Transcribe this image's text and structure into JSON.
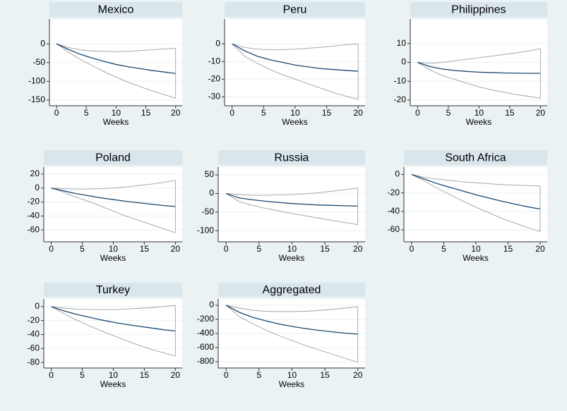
{
  "chart_data": [
    {
      "type": "line",
      "title": "Mexico",
      "x_label": "Weeks",
      "x": [
        0,
        2,
        4,
        6,
        8,
        10,
        12,
        14,
        16,
        18,
        20
      ],
      "xlim": [
        -1.2,
        21.1
      ],
      "xticks": [
        0,
        5,
        10,
        15,
        20
      ],
      "ylim": [
        -165,
        66
      ],
      "yticks": [
        0,
        -50,
        -100,
        -150
      ],
      "grid": true,
      "series": [
        {
          "color": "#1a476f",
          "values": [
            0,
            -15,
            -28,
            -38,
            -47,
            -55,
            -61,
            -66,
            -71,
            -75,
            -79
          ]
        },
        {
          "color": "#a0a0a0",
          "values": [
            0,
            -10,
            -16,
            -19,
            -20,
            -21,
            -20,
            -18,
            -16,
            -14,
            -12
          ]
        },
        {
          "color": "#a0a0a0",
          "values": [
            0,
            -22,
            -42,
            -58,
            -74,
            -89,
            -102,
            -114,
            -125,
            -135,
            -145
          ]
        }
      ]
    },
    {
      "type": "line",
      "title": "Peru",
      "x_label": "Weeks",
      "x": [
        0,
        2,
        4,
        6,
        8,
        10,
        12,
        14,
        16,
        18,
        20
      ],
      "xlim": [
        -1.2,
        21.1
      ],
      "xticks": [
        0,
        5,
        10,
        15,
        20
      ],
      "ylim": [
        -35,
        14
      ],
      "yticks": [
        0,
        -10,
        -20,
        -30
      ],
      "grid": true,
      "series": [
        {
          "color": "#1a476f",
          "values": [
            0,
            -4,
            -7,
            -9,
            -10.5,
            -12,
            -13,
            -14,
            -14.5,
            -15,
            -15.5
          ]
        },
        {
          "color": "#a0a0a0",
          "values": [
            0,
            -2,
            -3,
            -3.3,
            -3.3,
            -3,
            -2.5,
            -2,
            -1.3,
            -0.5,
            0
          ]
        },
        {
          "color": "#a0a0a0",
          "values": [
            0,
            -7,
            -11,
            -14.5,
            -17.5,
            -20,
            -22.5,
            -25,
            -27.5,
            -29.5,
            -31.5
          ]
        }
      ]
    },
    {
      "type": "line",
      "title": "Philippines",
      "x_label": "Weeks",
      "x": [
        0,
        2,
        4,
        6,
        8,
        10,
        12,
        14,
        16,
        18,
        20
      ],
      "xlim": [
        -1.2,
        21.1
      ],
      "xticks": [
        0,
        5,
        10,
        15,
        20
      ],
      "ylim": [
        -23,
        23
      ],
      "yticks": [
        10,
        0,
        -10,
        -20
      ],
      "grid": true,
      "series": [
        {
          "color": "#1a476f",
          "values": [
            0,
            -2.2,
            -3.5,
            -4.3,
            -4.8,
            -5.2,
            -5.4,
            -5.6,
            -5.7,
            -5.8,
            -5.8
          ]
        },
        {
          "color": "#a0a0a0",
          "values": [
            0,
            -0.5,
            0,
            0.8,
            1.6,
            2.5,
            3.3,
            4.2,
            5,
            6,
            7.3
          ]
        },
        {
          "color": "#a0a0a0",
          "values": [
            0,
            -4,
            -7,
            -9,
            -11,
            -13,
            -14.5,
            -15.8,
            -17,
            -18,
            -19
          ]
        }
      ]
    },
    {
      "type": "line",
      "title": "Poland",
      "x_label": "Weeks",
      "x": [
        0,
        2,
        4,
        6,
        8,
        10,
        12,
        14,
        16,
        18,
        20
      ],
      "xlim": [
        -1.2,
        21.1
      ],
      "xticks": [
        0,
        5,
        10,
        15,
        20
      ],
      "ylim": [
        -77,
        30
      ],
      "yticks": [
        20,
        0,
        -20,
        -40,
        -60
      ],
      "grid": true,
      "series": [
        {
          "color": "#1a476f",
          "values": [
            0,
            -4,
            -8,
            -11,
            -14,
            -16.5,
            -19,
            -21,
            -23,
            -25,
            -26.5
          ]
        },
        {
          "color": "#a0a0a0",
          "values": [
            0,
            -1,
            -1.5,
            -1.5,
            -1,
            0,
            1.5,
            3.5,
            5.5,
            8,
            11
          ]
        },
        {
          "color": "#a0a0a0",
          "values": [
            0,
            -6,
            -13,
            -19,
            -26,
            -33,
            -40,
            -46,
            -52,
            -58,
            -64
          ]
        }
      ]
    },
    {
      "type": "line",
      "title": "Russia",
      "x_label": "Weeks",
      "x": [
        0,
        2,
        4,
        6,
        8,
        10,
        12,
        14,
        16,
        18,
        20
      ],
      "xlim": [
        -1.2,
        21.1
      ],
      "xticks": [
        0,
        5,
        10,
        15,
        20
      ],
      "ylim": [
        -130,
        71
      ],
      "yticks": [
        50,
        0,
        -50,
        -100
      ],
      "grid": true,
      "series": [
        {
          "color": "#1a476f",
          "values": [
            0,
            -12,
            -17,
            -21,
            -24,
            -27,
            -29,
            -31,
            -32,
            -33,
            -34
          ]
        },
        {
          "color": "#a0a0a0",
          "values": [
            0,
            -3,
            -5,
            -5,
            -4,
            -3,
            -1,
            2,
            6,
            10,
            15
          ]
        },
        {
          "color": "#a0a0a0",
          "values": [
            0,
            -22,
            -32,
            -40,
            -47,
            -54,
            -60,
            -66,
            -72,
            -78,
            -84
          ]
        }
      ]
    },
    {
      "type": "line",
      "title": "South Africa",
      "x_label": "Weeks",
      "x": [
        0,
        2,
        4,
        6,
        8,
        10,
        12,
        14,
        16,
        18,
        20
      ],
      "xlim": [
        -1.2,
        21.1
      ],
      "xticks": [
        0,
        5,
        10,
        15,
        20
      ],
      "ylim": [
        -73,
        8
      ],
      "yticks": [
        0,
        -20,
        -40,
        -60
      ],
      "grid": true,
      "series": [
        {
          "color": "#1a476f",
          "values": [
            0,
            -5,
            -10,
            -14,
            -18,
            -22,
            -25.5,
            -29,
            -32,
            -35,
            -37.5
          ]
        },
        {
          "color": "#a0a0a0",
          "values": [
            0,
            -3,
            -5,
            -6.5,
            -8,
            -9,
            -10,
            -11,
            -11.5,
            -12,
            -12.5
          ]
        },
        {
          "color": "#a0a0a0",
          "values": [
            0,
            -7,
            -15,
            -22,
            -29,
            -35.5,
            -41.5,
            -47.5,
            -52.5,
            -57.5,
            -62
          ]
        }
      ]
    },
    {
      "type": "line",
      "title": "Turkey",
      "x_label": "Weeks",
      "x": [
        0,
        2,
        4,
        6,
        8,
        10,
        12,
        14,
        16,
        18,
        20
      ],
      "xlim": [
        -1.2,
        21.1
      ],
      "xticks": [
        0,
        5,
        10,
        15,
        20
      ],
      "ylim": [
        -88,
        11
      ],
      "yticks": [
        0,
        -20,
        -40,
        -60,
        -80
      ],
      "grid": true,
      "series": [
        {
          "color": "#1a476f",
          "values": [
            0,
            -6,
            -11,
            -15,
            -19,
            -22.5,
            -25.5,
            -28,
            -30.5,
            -33,
            -35
          ]
        },
        {
          "color": "#a0a0a0",
          "values": [
            0,
            -2,
            -3.5,
            -4,
            -4.5,
            -4.5,
            -3.5,
            -2.5,
            -1.5,
            0,
            2
          ]
        },
        {
          "color": "#a0a0a0",
          "values": [
            0,
            -10,
            -19,
            -27,
            -34.5,
            -41.5,
            -48.5,
            -55,
            -61,
            -66,
            -71
          ]
        }
      ]
    },
    {
      "type": "line",
      "title": "Aggregated",
      "x_label": "Weeks",
      "x": [
        0,
        2,
        4,
        6,
        8,
        10,
        12,
        14,
        16,
        18,
        20
      ],
      "xlim": [
        -1.2,
        21.1
      ],
      "xticks": [
        0,
        5,
        10,
        15,
        20
      ],
      "ylim": [
        -890,
        90
      ],
      "yticks": [
        0,
        -200,
        -400,
        -600,
        -800
      ],
      "grid": true,
      "series": [
        {
          "color": "#1a476f",
          "values": [
            0,
            -100,
            -170,
            -220,
            -265,
            -300,
            -330,
            -355,
            -375,
            -395,
            -410
          ]
        },
        {
          "color": "#a0a0a0",
          "values": [
            0,
            -40,
            -70,
            -85,
            -90,
            -90,
            -85,
            -75,
            -60,
            -40,
            -20
          ]
        },
        {
          "color": "#a0a0a0",
          "values": [
            0,
            -160,
            -260,
            -350,
            -430,
            -500,
            -570,
            -630,
            -690,
            -750,
            -810
          ]
        }
      ]
    }
  ]
}
